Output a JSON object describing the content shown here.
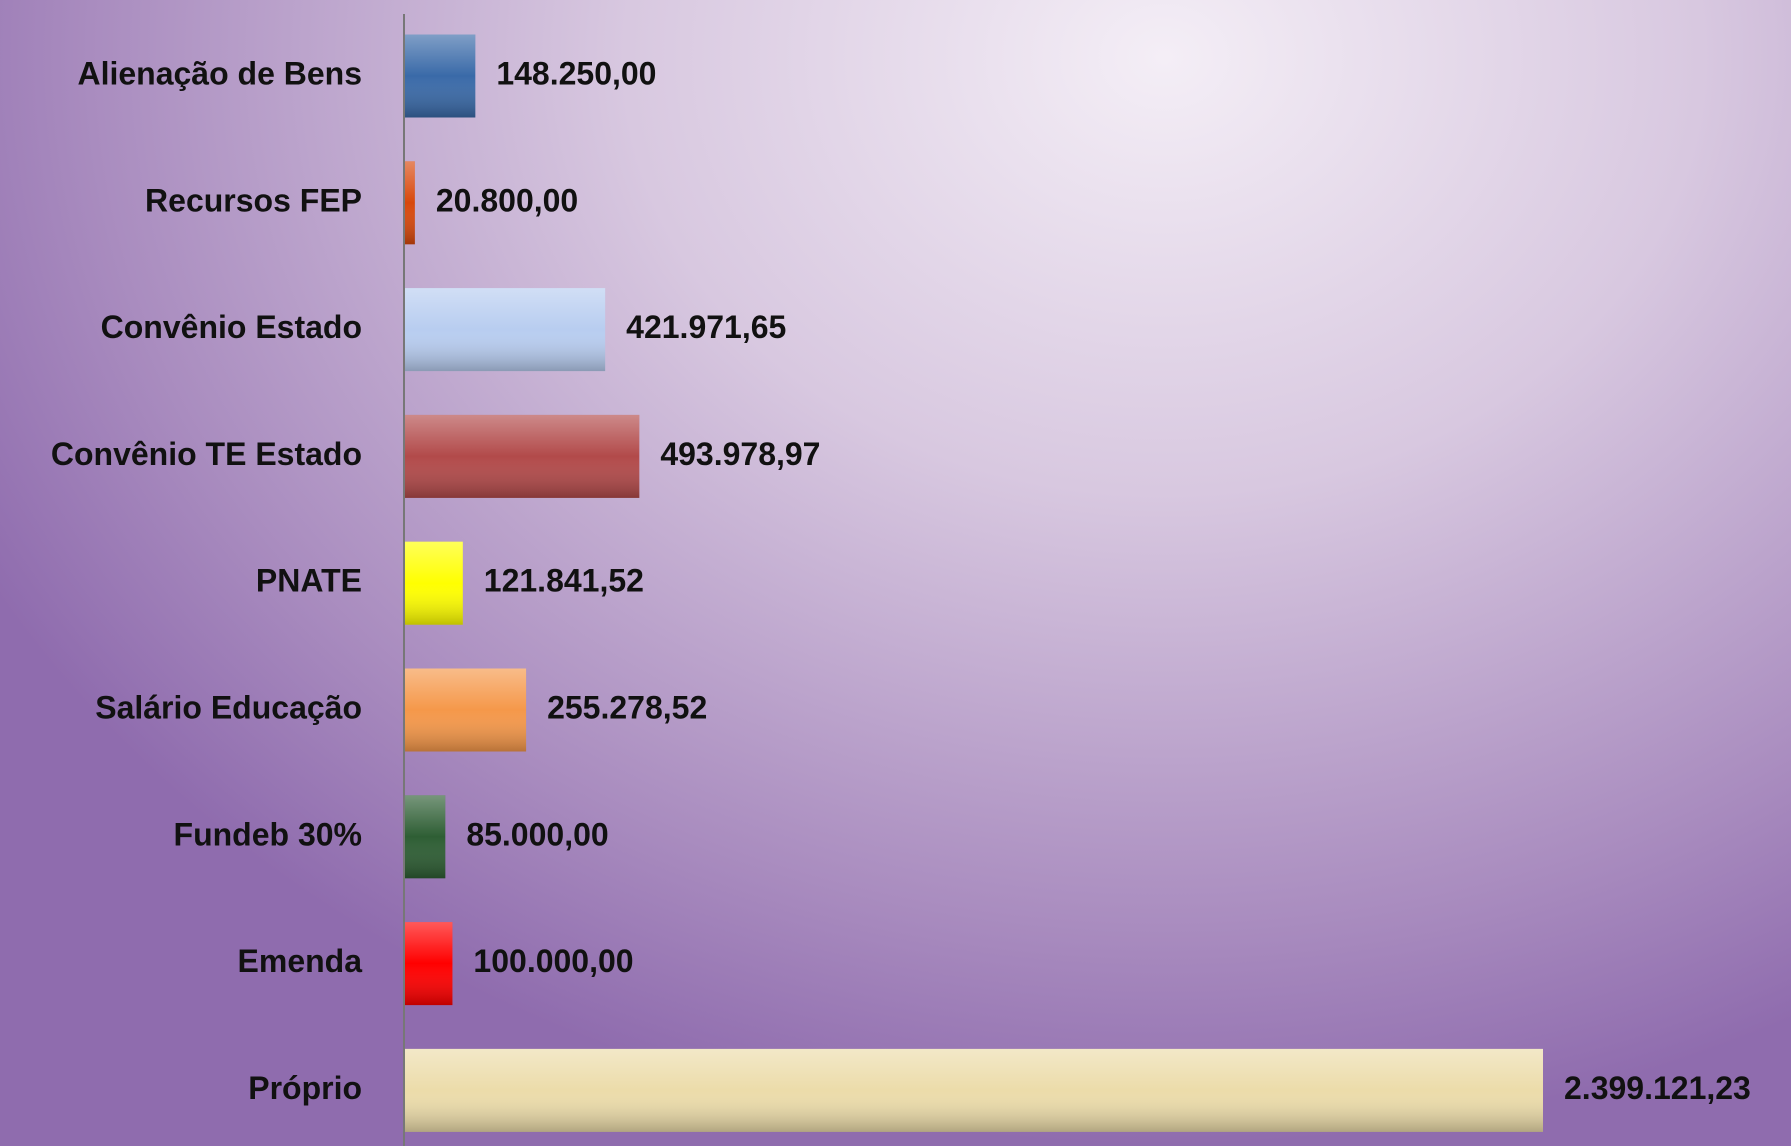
{
  "chart_data": {
    "type": "bar",
    "orientation": "horizontal",
    "categories": [
      "Alienação de Bens",
      "Recursos FEP",
      "Convênio Estado",
      "Convênio TE Estado",
      "PNATE",
      "Salário Educação",
      "Fundeb 30%",
      "Emenda",
      "Próprio"
    ],
    "values": [
      148250.0,
      20800.0,
      421971.65,
      493978.97,
      121841.52,
      255278.52,
      85000.0,
      100000.0,
      2399121.23
    ],
    "value_labels": [
      "148.250,00",
      "20.800,00",
      "421.971,65",
      "493.978,97",
      "121.841,52",
      "255.278,52",
      "85.000,00",
      "100.000,00",
      "2.399.121,23"
    ],
    "colors": [
      "#3a6aa8",
      "#d8480c",
      "#b8cdf0",
      "#b24a4a",
      "#ffff00",
      "#f5984a",
      "#2e5e34",
      "#ff0000",
      "#ecdcaa"
    ]
  }
}
